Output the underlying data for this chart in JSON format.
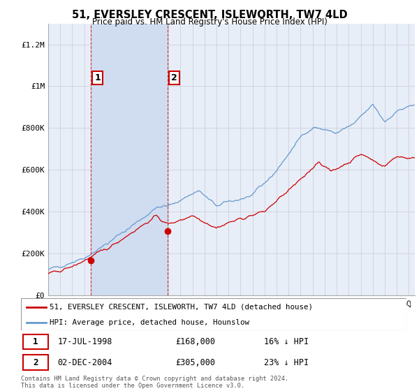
{
  "title": "51, EVERSLEY CRESCENT, ISLEWORTH, TW7 4LD",
  "subtitle": "Price paid vs. HM Land Registry's House Price Index (HPI)",
  "ylabel_ticks": [
    "£0",
    "£200K",
    "£400K",
    "£600K",
    "£800K",
    "£1M",
    "£1.2M"
  ],
  "ytick_values": [
    0,
    200000,
    400000,
    600000,
    800000,
    1000000,
    1200000
  ],
  "ylim": [
    0,
    1300000
  ],
  "xlim_start": 1995.0,
  "xlim_end": 2025.5,
  "bg_color": "#e8eef8",
  "shade_color": "#d0ddf0",
  "grid_color": "#c8c8d8",
  "sale1_x": 1998.54,
  "sale1_y": 168000,
  "sale2_x": 2004.92,
  "sale2_y": 305000,
  "sale1_label": "1",
  "sale2_label": "2",
  "red_line_color": "#cc0000",
  "blue_line_color": "#6699cc",
  "vline_color": "#cc3333",
  "legend_label_red": "51, EVERSLEY CRESCENT, ISLEWORTH, TW7 4LD (detached house)",
  "legend_label_blue": "HPI: Average price, detached house, Hounslow",
  "table_row1": [
    "1",
    "17-JUL-1998",
    "£168,000",
    "16% ↓ HPI"
  ],
  "table_row2": [
    "2",
    "02-DEC-2004",
    "£305,000",
    "23% ↓ HPI"
  ],
  "footer": "Contains HM Land Registry data © Crown copyright and database right 2024.\nThis data is licensed under the Open Government Licence v3.0."
}
